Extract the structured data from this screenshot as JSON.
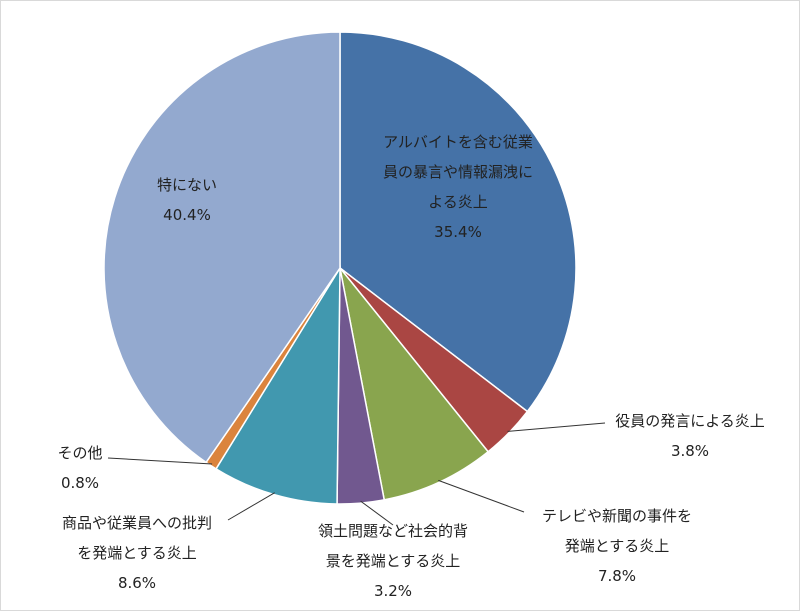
{
  "chart_data": {
    "type": "pie",
    "title": "",
    "slices": [
      {
        "label_lines": [
          "アルバイトを含む従業",
          "員の暴言や情報漏洩に",
          "よる炎上"
        ],
        "value_text": "35.4%",
        "value": 35.4,
        "color": "#4572A7"
      },
      {
        "label_lines": [
          "役員の発言による炎上"
        ],
        "value_text": "3.8%",
        "value": 3.8,
        "color": "#AA4643"
      },
      {
        "label_lines": [
          "テレビや新聞の事件を",
          "発端とする炎上"
        ],
        "value_text": "7.8%",
        "value": 7.8,
        "color": "#89A54E"
      },
      {
        "label_lines": [
          "領土問題など社会的背",
          "景を発端とする炎上"
        ],
        "value_text": "3.2%",
        "value": 3.2,
        "color": "#71588F"
      },
      {
        "label_lines": [
          "商品や従業員への批判",
          "を発端とする炎上"
        ],
        "value_text": "8.6%",
        "value": 8.6,
        "color": "#4198AF"
      },
      {
        "label_lines": [
          "その他"
        ],
        "value_text": "0.8%",
        "value": 0.8,
        "color": "#DB843D"
      },
      {
        "label_lines": [
          "特にない"
        ],
        "value_text": "40.4%",
        "value": 40.4,
        "color": "#93A9CF"
      }
    ]
  }
}
